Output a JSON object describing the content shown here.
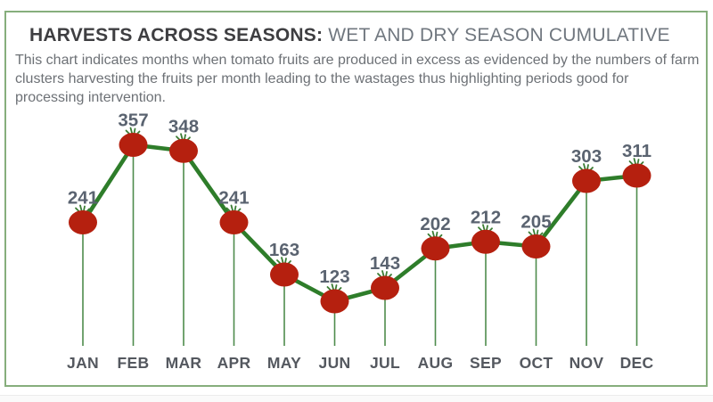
{
  "frame": {
    "border_color": "#86ae7c"
  },
  "header": {
    "title_bold": "HARVESTS ACROSS SEASONS:",
    "title_regular": " WET AND DRY SEASON CUMULATIVE",
    "description": "This chart indicates months when tomato fruits are produced in excess as evidenced by the numbers of farm clusters harvesting the fruits per month leading to the wastages thus highlighting periods good for processing intervention."
  },
  "chart_data": {
    "type": "line",
    "title": "HARVESTS ACROSS SEASONS: WET AND DRY SEASON CUMULATIVE",
    "categories": [
      "JAN",
      "FEB",
      "MAR",
      "APR",
      "MAY",
      "JUN",
      "JUL",
      "AUG",
      "SEP",
      "OCT",
      "NOV",
      "DEC"
    ],
    "values": [
      241,
      357,
      348,
      241,
      163,
      123,
      143,
      202,
      212,
      205,
      303,
      311
    ],
    "xlabel": "",
    "ylabel": "",
    "ylim": [
      0,
      400
    ],
    "grid": false,
    "legend": "none",
    "value_labels_shown": true,
    "marker_style": "tomato",
    "colors": {
      "line": "#2e7d2a",
      "drop_line": "#4e8c4c",
      "marker_fill": "#b5200f",
      "marker_sprig": "#3b7c33",
      "value_label": "#5a6370",
      "category_label": "#54585f"
    }
  }
}
